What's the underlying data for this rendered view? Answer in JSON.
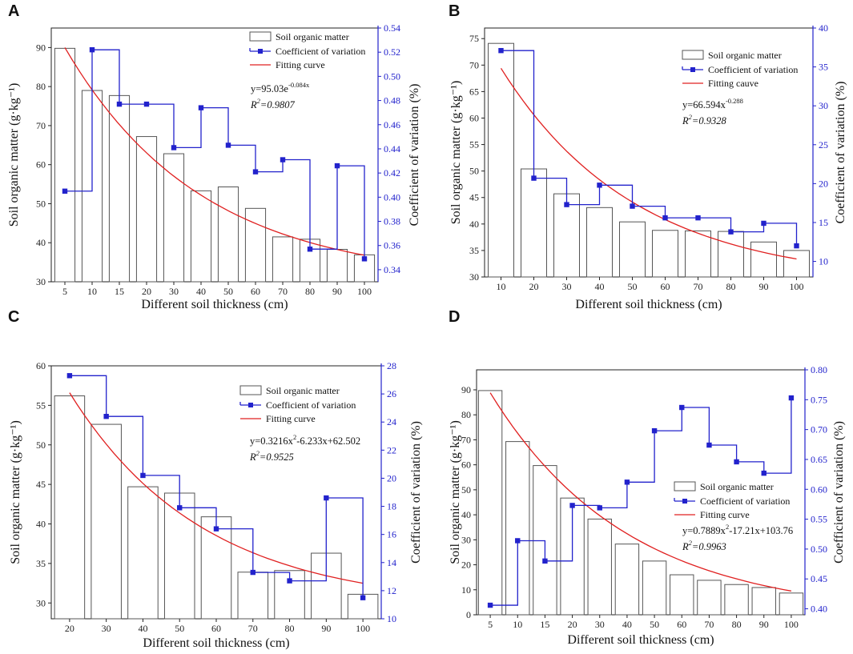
{
  "colors": {
    "bar_stroke": "#555555",
    "cv_line": "#2222cc",
    "fit": "#e02020",
    "axis": "#222222",
    "right_axis": "#2222cc"
  },
  "chart_data": [
    {
      "panel": "A",
      "type": "bar",
      "categories": [
        "5",
        "10",
        "15",
        "20",
        "30",
        "40",
        "50",
        "60",
        "70",
        "80",
        "90",
        "100"
      ],
      "series": [
        {
          "name": "Soil organic matter",
          "axis": "left",
          "values": [
            89.8,
            79.0,
            77.7,
            67.2,
            62.8,
            53.3,
            54.3,
            48.8,
            41.5,
            40.9,
            38.3,
            36.9
          ]
        },
        {
          "name": "Coefficient of variation",
          "axis": "right",
          "type": "step",
          "values": [
            0.405,
            0.522,
            0.477,
            0.477,
            0.441,
            0.474,
            0.443,
            0.421,
            0.431,
            0.357,
            0.426,
            0.349
          ]
        },
        {
          "name": "Fitting curve",
          "axis": "left",
          "type": "line",
          "equation": "y=95.03e^(-0.084x)",
          "y_start": 90.0,
          "y_end": 36.8
        }
      ],
      "xlabel": "Different soil thickness (cm)",
      "ylabel": "Soil organic matter (g·kg⁻¹)",
      "y2label": "Coefficient of variation (%)",
      "ylim": [
        30,
        95
      ],
      "yticks": [
        30,
        40,
        50,
        60,
        70,
        80,
        90
      ],
      "y2lim": [
        0.33,
        0.54
      ],
      "y2ticks": [
        0.34,
        0.36,
        0.38,
        0.4,
        0.42,
        0.44,
        0.46,
        0.48,
        0.5,
        0.52,
        0.54
      ],
      "y2tick_labels": [
        "0.34",
        "0.36",
        "0.38",
        "0.40",
        "0.42",
        "0.44",
        "0.46",
        "0.48",
        "0.50",
        "0.52",
        "0.54"
      ],
      "legend": [
        "Soil organic matter",
        "Coefficient of variation",
        "Fitting curve"
      ],
      "eq_base": "y=95.03e",
      "eq_sup": "-0.084x",
      "r2_label": "R",
      "r2_value": "=0.9807"
    },
    {
      "panel": "B",
      "type": "bar",
      "categories": [
        "10",
        "20",
        "30",
        "40",
        "50",
        "60",
        "70",
        "80",
        "90",
        "100"
      ],
      "series": [
        {
          "name": "Soil organic matter",
          "axis": "left",
          "values": [
            74.1,
            50.4,
            45.7,
            43.1,
            40.4,
            38.8,
            38.7,
            38.6,
            36.6,
            35.0
          ]
        },
        {
          "name": "Coefficient of variation",
          "axis": "right",
          "type": "step",
          "values": [
            37.1,
            20.7,
            17.3,
            19.8,
            17.1,
            15.6,
            15.6,
            13.8,
            14.9,
            12.0
          ]
        },
        {
          "name": "Fitting cauve",
          "axis": "left",
          "type": "line",
          "equation": "y=66.594x^(-0.288)",
          "y_start": 69.4,
          "y_end": 33.4
        }
      ],
      "xlabel": "Different soil thickness (cm)",
      "ylabel": "Soil organic matter (g·kg⁻¹)",
      "y2label": "Coefficient of variation (%)",
      "ylim": [
        30,
        77
      ],
      "yticks": [
        30,
        35,
        40,
        45,
        50,
        55,
        60,
        65,
        70,
        75
      ],
      "y2lim": [
        8.0,
        40.0
      ],
      "y2ticks": [
        10,
        15,
        20,
        25,
        30,
        35,
        40
      ],
      "y2tick_labels": [
        "10",
        "15",
        "20",
        "25",
        "30",
        "35",
        "40"
      ],
      "legend": [
        "Soil organic matter",
        "Coefficient of variation",
        "Fitting cauve"
      ],
      "eq_base": "y=66.594x",
      "eq_sup": "-0.288",
      "r2_label": "R",
      "r2_value": "=0.9328"
    },
    {
      "panel": "C",
      "type": "bar",
      "categories": [
        "20",
        "30",
        "40",
        "50",
        "60",
        "70",
        "80",
        "90",
        "100"
      ],
      "series": [
        {
          "name": "Soil organic matter",
          "axis": "left",
          "values": [
            56.2,
            52.6,
            44.7,
            43.9,
            40.9,
            33.9,
            34.1,
            36.3,
            31.1
          ]
        },
        {
          "name": "Coefficient of variation",
          "axis": "right",
          "type": "step",
          "values": [
            27.3,
            24.4,
            20.2,
            17.9,
            16.4,
            13.3,
            12.7,
            18.6,
            11.5
          ]
        },
        {
          "name": "Fitting curve",
          "axis": "left",
          "type": "line",
          "equation": "y=0.3216x²-6.233x+62.502",
          "y_start": 56.6,
          "y_end": 32.5
        }
      ],
      "xlabel": "Different soil thickness (cm)",
      "ylabel": "Soil organic matter (g·kg⁻¹)",
      "y2label": "Coefficient of variation (%)",
      "ylim": [
        28,
        60
      ],
      "yticks": [
        30,
        35,
        40,
        45,
        50,
        55,
        60
      ],
      "y2lim": [
        10,
        28
      ],
      "y2ticks": [
        10,
        12,
        14,
        16,
        18,
        20,
        22,
        24,
        26,
        28
      ],
      "y2tick_labels": [
        "10",
        "12",
        "14",
        "16",
        "18",
        "20",
        "22",
        "24",
        "26",
        "28"
      ],
      "legend": [
        "Soil organic matter",
        "Coefficient of variation",
        "Fitting curve"
      ],
      "eq_base": "y=0.3216x",
      "eq_sup": "2",
      "eq_rest": "-6.233x+62.502",
      "r2_label": "R",
      "r2_value": "=0.9525"
    },
    {
      "panel": "D",
      "type": "bar",
      "categories": [
        "5",
        "10",
        "15",
        "20",
        "30",
        "40",
        "50",
        "60",
        "70",
        "80",
        "90",
        "100"
      ],
      "series": [
        {
          "name": "Soil organic matter",
          "axis": "left",
          "values": [
            89.7,
            69.3,
            59.7,
            46.7,
            38.3,
            28.3,
            21.5,
            16.0,
            13.8,
            12.1,
            10.9,
            8.7
          ]
        },
        {
          "name": "Coefficient of variation",
          "axis": "right",
          "type": "step",
          "values": [
            0.406,
            0.514,
            0.48,
            0.573,
            0.569,
            0.612,
            0.698,
            0.737,
            0.674,
            0.646,
            0.627,
            0.753
          ]
        },
        {
          "name": "Fitting curve",
          "axis": "left",
          "type": "line",
          "equation": "y=0.7889x²-17.21x+103.76",
          "y_start": 88.8,
          "y_end": 9.5
        }
      ],
      "xlabel": "Different soil thickness (cm)",
      "ylabel": "Soil organic matter (g·kg⁻¹)",
      "y2label": "Coefficient of variation (%)",
      "ylim": [
        0,
        98
      ],
      "yticks": [
        0,
        10,
        20,
        30,
        40,
        50,
        60,
        70,
        80,
        90
      ],
      "y2lim": [
        0.39,
        0.8
      ],
      "y2ticks": [
        0.4,
        0.45,
        0.5,
        0.55,
        0.6,
        0.65,
        0.7,
        0.75,
        0.8
      ],
      "y2tick_labels": [
        "0.40",
        "0.45",
        "0.50",
        "0.55",
        "0.60",
        "0.65",
        "0.70",
        "0.75",
        "0.80"
      ],
      "legend": [
        "Soil organic matter",
        "Coefficient of variation",
        "Fitting curve"
      ],
      "eq_base": "y=0.7889x",
      "eq_sup": "2",
      "eq_rest": "-17.21x+103.76",
      "r2_label": "R",
      "r2_value": "=0.9963"
    }
  ]
}
